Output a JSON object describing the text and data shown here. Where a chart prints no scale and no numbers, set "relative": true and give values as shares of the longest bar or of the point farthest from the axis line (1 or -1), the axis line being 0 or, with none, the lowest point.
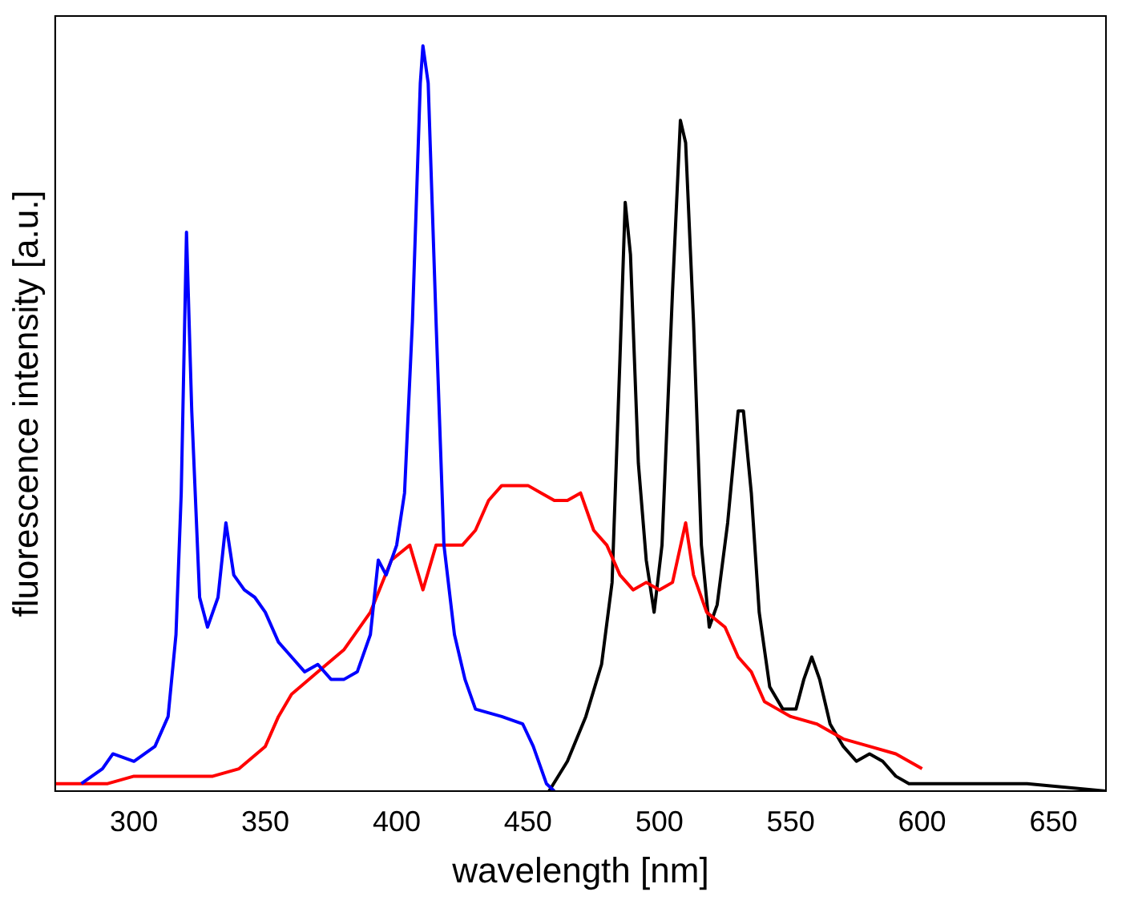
{
  "chart_data": {
    "type": "line",
    "xlabel": "wavelength [nm]",
    "ylabel": "fluorescence intensity [a.u.]",
    "relative": true,
    "xlim": [
      270,
      670
    ],
    "xticks": [
      300,
      350,
      400,
      450,
      500,
      550,
      600,
      650
    ],
    "grid": false,
    "legend": false,
    "marker": "none",
    "line_style": "solid",
    "series": [
      {
        "color": "#0000ff",
        "x": [
          280,
          288,
          292,
          300,
          308,
          313,
          316,
          318,
          320,
          322,
          325,
          328,
          332,
          335,
          338,
          342,
          346,
          350,
          355,
          360,
          365,
          370,
          375,
          380,
          385,
          390,
          393,
          396,
          400,
          403,
          406,
          409,
          410,
          412,
          415,
          418,
          422,
          426,
          430,
          440,
          448,
          452,
          457,
          460
        ],
        "values": [
          0.01,
          0.03,
          0.05,
          0.04,
          0.06,
          0.1,
          0.21,
          0.4,
          0.75,
          0.51,
          0.26,
          0.22,
          0.26,
          0.36,
          0.29,
          0.27,
          0.26,
          0.24,
          0.2,
          0.18,
          0.16,
          0.17,
          0.15,
          0.15,
          0.16,
          0.21,
          0.31,
          0.29,
          0.33,
          0.4,
          0.63,
          0.95,
          1,
          0.95,
          0.63,
          0.33,
          0.21,
          0.15,
          0.11,
          0.1,
          0.09,
          0.06,
          0.01,
          0
        ]
      },
      {
        "color": "#ff0000",
        "x": [
          270,
          290,
          300,
          320,
          330,
          340,
          350,
          355,
          360,
          370,
          380,
          390,
          398,
          405,
          410,
          415,
          420,
          425,
          430,
          435,
          440,
          445,
          450,
          455,
          460,
          465,
          470,
          475,
          480,
          485,
          490,
          495,
          500,
          505,
          510,
          513,
          518,
          525,
          530,
          535,
          540,
          545,
          550,
          560,
          570,
          580,
          590,
          600
        ],
        "values": [
          0.01,
          0.01,
          0.02,
          0.02,
          0.02,
          0.03,
          0.06,
          0.1,
          0.13,
          0.16,
          0.19,
          0.24,
          0.31,
          0.33,
          0.27,
          0.33,
          0.33,
          0.33,
          0.35,
          0.39,
          0.41,
          0.41,
          0.41,
          0.4,
          0.39,
          0.39,
          0.4,
          0.35,
          0.33,
          0.29,
          0.27,
          0.28,
          0.27,
          0.28,
          0.36,
          0.29,
          0.24,
          0.22,
          0.18,
          0.16,
          0.12,
          0.11,
          0.1,
          0.09,
          0.07,
          0.06,
          0.05,
          0.03
        ]
      },
      {
        "color": "#000000",
        "x": [
          458,
          465,
          472,
          478,
          482,
          485,
          487,
          489,
          492,
          495,
          498,
          501,
          505,
          508,
          510,
          513,
          516,
          519,
          522,
          526,
          530,
          532,
          535,
          538,
          542,
          547,
          552,
          555,
          558,
          561,
          565,
          570,
          575,
          580,
          585,
          590,
          595,
          600,
          620,
          640,
          670
        ],
        "values": [
          0,
          0.04,
          0.1,
          0.17,
          0.28,
          0.58,
          0.79,
          0.72,
          0.44,
          0.31,
          0.24,
          0.33,
          0.67,
          0.9,
          0.87,
          0.63,
          0.33,
          0.22,
          0.25,
          0.36,
          0.51,
          0.51,
          0.4,
          0.24,
          0.14,
          0.11,
          0.11,
          0.15,
          0.18,
          0.15,
          0.09,
          0.06,
          0.04,
          0.05,
          0.04,
          0.02,
          0.01,
          0.01,
          0.01,
          0.01,
          0
        ]
      }
    ]
  }
}
